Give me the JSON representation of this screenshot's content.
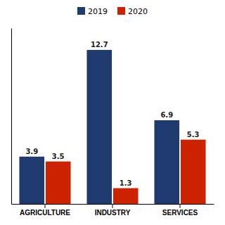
{
  "chart_data": {
    "type": "bar",
    "categories": [
      "AGRICULTURE",
      "INDUSTRY",
      "SERVICES"
    ],
    "series": [
      {
        "name": "2019",
        "color": "#1e3a6e",
        "values": [
          3.9,
          12.7,
          6.9
        ]
      },
      {
        "name": "2020",
        "color": "#cc2200",
        "values": [
          3.5,
          1.3,
          5.3
        ]
      }
    ],
    "ylim": [
      0,
      14.5
    ],
    "data_labels": true,
    "tick_labels": "x",
    "legend": "top"
  }
}
